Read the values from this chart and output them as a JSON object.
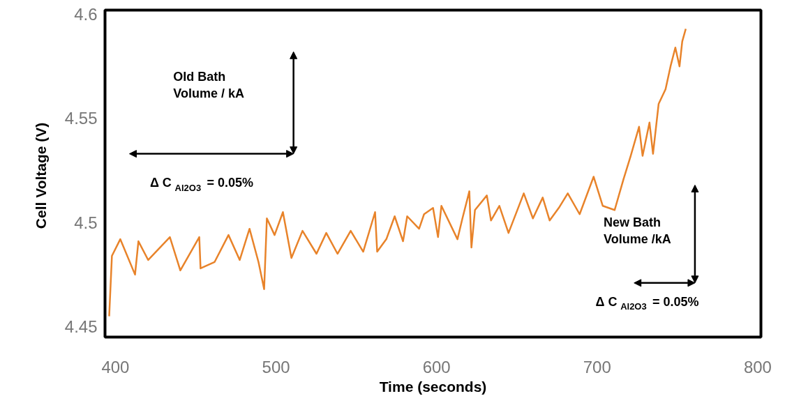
{
  "chart_data": {
    "type": "line",
    "xlabel": "Time (seconds)",
    "ylabel": "Cell Voltage  (V)",
    "xlim": [
      393.5,
      802
    ],
    "ylim": [
      4.445,
      4.602
    ],
    "xticks": [
      400,
      500,
      600,
      700,
      800
    ],
    "yticks": [
      4.45,
      4.5,
      4.55,
      4.6
    ],
    "grid": false,
    "marker": "none",
    "line_style": "solid",
    "series": [
      {
        "color": "#e8832a",
        "x": [
          396.1,
          397.8,
          403.0,
          412.2,
          414.3,
          420.4,
          433.9,
          440.4,
          452.2,
          453.0,
          461.7,
          470.4,
          477.4,
          483.5,
          489.1,
          492.6,
          494.3,
          499.1,
          504.3,
          509.6,
          516.5,
          525.2,
          531.3,
          538.3,
          546.5,
          554.3,
          561.7,
          563.0,
          568.7,
          573.9,
          579.1,
          581.7,
          589.1,
          592.2,
          597.8,
          600.9,
          603.0,
          613.0,
          616.1,
          620.4,
          621.7,
          623.9,
          631.3,
          633.9,
          639.1,
          644.8,
          654.3,
          660.0,
          666.1,
          670.4,
          676.1,
          681.7,
          689.1,
          697.8,
          703.5,
          710.9,
          716.5,
          720.9,
          726.1,
          728.3,
          732.6,
          734.8,
          738.3,
          742.6,
          745.7,
          748.7,
          751.3,
          753.0,
          755.2
        ],
        "values": [
          4.455,
          4.484,
          4.492,
          4.475,
          4.491,
          4.482,
          4.493,
          4.477,
          4.493,
          4.478,
          4.481,
          4.494,
          4.482,
          4.497,
          4.481,
          4.468,
          4.502,
          4.494,
          4.505,
          4.483,
          4.496,
          4.485,
          4.495,
          4.485,
          4.496,
          4.486,
          4.505,
          4.486,
          4.492,
          4.503,
          4.491,
          4.503,
          4.497,
          4.504,
          4.507,
          4.493,
          4.508,
          4.492,
          4.502,
          4.515,
          4.488,
          4.506,
          4.513,
          4.501,
          4.508,
          4.495,
          4.514,
          4.502,
          4.512,
          4.501,
          4.507,
          4.514,
          4.504,
          4.522,
          4.508,
          4.506,
          4.521,
          4.532,
          4.546,
          4.532,
          4.548,
          4.533,
          4.557,
          4.564,
          4.575,
          4.584,
          4.575,
          4.587,
          4.593
        ]
      }
    ],
    "annotations": [
      "Old  Bath\nVolume / kA",
      "Δ C$_{Al2O3}$ = 0.05%",
      "New Bath\nVolume /kA",
      "Δ C$_{Al2O3}$ = 0.05%"
    ]
  }
}
